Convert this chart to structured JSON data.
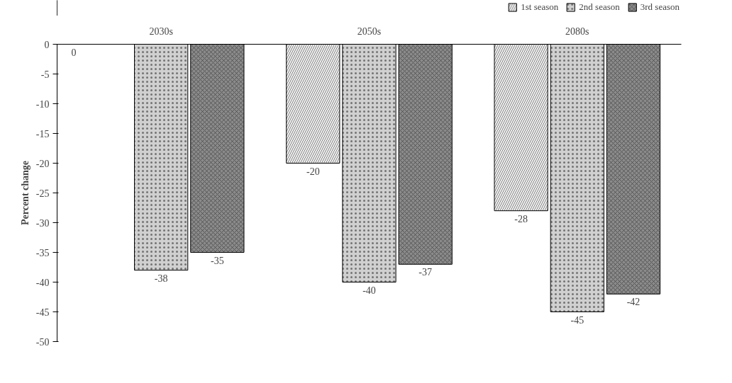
{
  "chart_data": {
    "type": "bar",
    "categories": [
      "2030s",
      "2050s",
      "2080s"
    ],
    "ylabel": "Percent change",
    "series": [
      {
        "name": "1st season",
        "color": "#f2f2f2",
        "values": [
          0,
          -20,
          -28
        ]
      },
      {
        "name": "2nd season",
        "color": "#d0d0d0",
        "values": [
          -38,
          -40,
          -45
        ]
      },
      {
        "name": "3rd season",
        "color": "#8a8a8a",
        "values": [
          -35,
          -37,
          -42
        ]
      }
    ],
    "ylim": [
      -50,
      0
    ],
    "yticks": [
      0,
      -5,
      -10,
      -15,
      -20,
      -25,
      -30,
      -35,
      -40,
      -45,
      -50
    ],
    "data_labels": true,
    "legend": "top right",
    "grid": false
  }
}
